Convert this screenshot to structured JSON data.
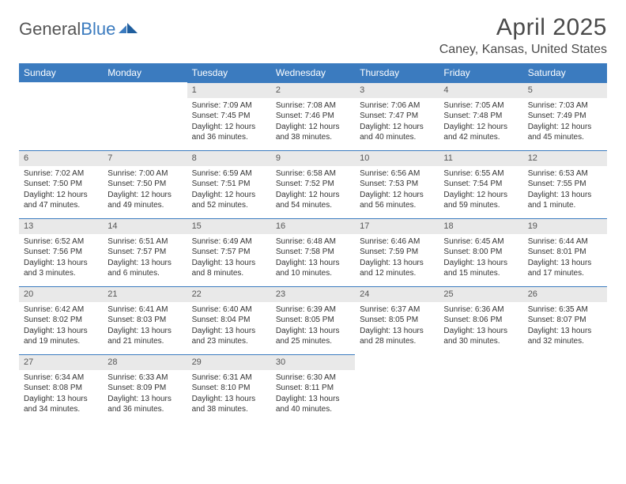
{
  "brand": {
    "part1": "General",
    "part2": "Blue"
  },
  "title": "April 2025",
  "location": "Caney, Kansas, United States",
  "colors": {
    "header_bg": "#3b7bbf",
    "header_text": "#ffffff",
    "daynum_bg": "#e9e9e9",
    "daynum_border": "#3b7bbf",
    "body_text": "#333333",
    "page_bg": "#ffffff"
  },
  "weekdays": [
    "Sunday",
    "Monday",
    "Tuesday",
    "Wednesday",
    "Thursday",
    "Friday",
    "Saturday"
  ],
  "grid": [
    [
      null,
      null,
      {
        "n": "1",
        "sr": "7:09 AM",
        "ss": "7:45 PM",
        "dl": "12 hours and 36 minutes."
      },
      {
        "n": "2",
        "sr": "7:08 AM",
        "ss": "7:46 PM",
        "dl": "12 hours and 38 minutes."
      },
      {
        "n": "3",
        "sr": "7:06 AM",
        "ss": "7:47 PM",
        "dl": "12 hours and 40 minutes."
      },
      {
        "n": "4",
        "sr": "7:05 AM",
        "ss": "7:48 PM",
        "dl": "12 hours and 42 minutes."
      },
      {
        "n": "5",
        "sr": "7:03 AM",
        "ss": "7:49 PM",
        "dl": "12 hours and 45 minutes."
      }
    ],
    [
      {
        "n": "6",
        "sr": "7:02 AM",
        "ss": "7:50 PM",
        "dl": "12 hours and 47 minutes."
      },
      {
        "n": "7",
        "sr": "7:00 AM",
        "ss": "7:50 PM",
        "dl": "12 hours and 49 minutes."
      },
      {
        "n": "8",
        "sr": "6:59 AM",
        "ss": "7:51 PM",
        "dl": "12 hours and 52 minutes."
      },
      {
        "n": "9",
        "sr": "6:58 AM",
        "ss": "7:52 PM",
        "dl": "12 hours and 54 minutes."
      },
      {
        "n": "10",
        "sr": "6:56 AM",
        "ss": "7:53 PM",
        "dl": "12 hours and 56 minutes."
      },
      {
        "n": "11",
        "sr": "6:55 AM",
        "ss": "7:54 PM",
        "dl": "12 hours and 59 minutes."
      },
      {
        "n": "12",
        "sr": "6:53 AM",
        "ss": "7:55 PM",
        "dl": "13 hours and 1 minute."
      }
    ],
    [
      {
        "n": "13",
        "sr": "6:52 AM",
        "ss": "7:56 PM",
        "dl": "13 hours and 3 minutes."
      },
      {
        "n": "14",
        "sr": "6:51 AM",
        "ss": "7:57 PM",
        "dl": "13 hours and 6 minutes."
      },
      {
        "n": "15",
        "sr": "6:49 AM",
        "ss": "7:57 PM",
        "dl": "13 hours and 8 minutes."
      },
      {
        "n": "16",
        "sr": "6:48 AM",
        "ss": "7:58 PM",
        "dl": "13 hours and 10 minutes."
      },
      {
        "n": "17",
        "sr": "6:46 AM",
        "ss": "7:59 PM",
        "dl": "13 hours and 12 minutes."
      },
      {
        "n": "18",
        "sr": "6:45 AM",
        "ss": "8:00 PM",
        "dl": "13 hours and 15 minutes."
      },
      {
        "n": "19",
        "sr": "6:44 AM",
        "ss": "8:01 PM",
        "dl": "13 hours and 17 minutes."
      }
    ],
    [
      {
        "n": "20",
        "sr": "6:42 AM",
        "ss": "8:02 PM",
        "dl": "13 hours and 19 minutes."
      },
      {
        "n": "21",
        "sr": "6:41 AM",
        "ss": "8:03 PM",
        "dl": "13 hours and 21 minutes."
      },
      {
        "n": "22",
        "sr": "6:40 AM",
        "ss": "8:04 PM",
        "dl": "13 hours and 23 minutes."
      },
      {
        "n": "23",
        "sr": "6:39 AM",
        "ss": "8:05 PM",
        "dl": "13 hours and 25 minutes."
      },
      {
        "n": "24",
        "sr": "6:37 AM",
        "ss": "8:05 PM",
        "dl": "13 hours and 28 minutes."
      },
      {
        "n": "25",
        "sr": "6:36 AM",
        "ss": "8:06 PM",
        "dl": "13 hours and 30 minutes."
      },
      {
        "n": "26",
        "sr": "6:35 AM",
        "ss": "8:07 PM",
        "dl": "13 hours and 32 minutes."
      }
    ],
    [
      {
        "n": "27",
        "sr": "6:34 AM",
        "ss": "8:08 PM",
        "dl": "13 hours and 34 minutes."
      },
      {
        "n": "28",
        "sr": "6:33 AM",
        "ss": "8:09 PM",
        "dl": "13 hours and 36 minutes."
      },
      {
        "n": "29",
        "sr": "6:31 AM",
        "ss": "8:10 PM",
        "dl": "13 hours and 38 minutes."
      },
      {
        "n": "30",
        "sr": "6:30 AM",
        "ss": "8:11 PM",
        "dl": "13 hours and 40 minutes."
      },
      null,
      null,
      null
    ]
  ],
  "labels": {
    "sunrise": "Sunrise: ",
    "sunset": "Sunset: ",
    "daylight": "Daylight: "
  }
}
